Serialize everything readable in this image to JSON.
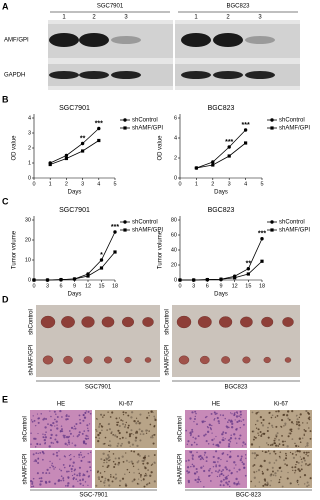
{
  "panel_labels": [
    "A",
    "B",
    "C",
    "D",
    "E"
  ],
  "blot": {
    "groups": [
      "SGC7901",
      "BGC823"
    ],
    "lanes": [
      "1",
      "2",
      "3",
      "1",
      "2",
      "3"
    ],
    "rows": [
      "AMF/GPI",
      "GAPDH"
    ]
  },
  "tumor_photos": {
    "rows": [
      "shControl",
      "shAMF/GPI"
    ],
    "groups": [
      "SGC7901",
      "BGC823"
    ]
  },
  "histology": {
    "columns": [
      "HE",
      "Ki-67",
      "HE",
      "Ki-67"
    ],
    "rows": [
      "shControl",
      "shAMF/GPI"
    ],
    "groups": [
      "SGC-7901",
      "BGC-823"
    ]
  },
  "chart_data": [
    {
      "type": "line",
      "title": "SGC7901",
      "x_label": "Days",
      "y_label": "OD value",
      "x": [
        1,
        2,
        3,
        4
      ],
      "xlim": [
        0,
        5
      ],
      "xticks": [
        0,
        1,
        2,
        3,
        4,
        5
      ],
      "ylim": [
        0,
        4
      ],
      "yticks": [
        0,
        1,
        2,
        3,
        4
      ],
      "series": [
        {
          "name": "shControl",
          "color": "#000000",
          "marker": "circle",
          "values": [
            1.0,
            1.5,
            2.3,
            3.3
          ]
        },
        {
          "name": "shAMF/GPI",
          "color": "#000000",
          "marker": "square",
          "values": [
            0.9,
            1.3,
            1.8,
            2.5
          ]
        }
      ],
      "annotations": [
        {
          "x": 3,
          "label": "**"
        },
        {
          "x": 4,
          "label": "***"
        }
      ]
    },
    {
      "type": "line",
      "title": "BGC823",
      "x_label": "Days",
      "y_label": "OD value",
      "x": [
        1,
        2,
        3,
        4
      ],
      "xlim": [
        0,
        5
      ],
      "xticks": [
        0,
        1,
        2,
        3,
        4,
        5
      ],
      "ylim": [
        0,
        6
      ],
      "yticks": [
        0,
        2,
        4,
        6
      ],
      "series": [
        {
          "name": "shControl",
          "color": "#000000",
          "marker": "circle",
          "values": [
            1.0,
            1.6,
            3.1,
            4.8
          ]
        },
        {
          "name": "shAMF/GPI",
          "color": "#000000",
          "marker": "square",
          "values": [
            1.0,
            1.3,
            2.2,
            3.5
          ]
        }
      ],
      "annotations": [
        {
          "x": 3,
          "label": "***"
        },
        {
          "x": 4,
          "label": "***"
        }
      ]
    },
    {
      "type": "line",
      "title": "SGC7901",
      "x_label": "Days",
      "y_label": "Tumor volume",
      "x": [
        0,
        3,
        6,
        9,
        12,
        15,
        18
      ],
      "xlim": [
        0,
        18
      ],
      "xticks": [
        0,
        3,
        6,
        9,
        12,
        15,
        18
      ],
      "ylim": [
        0,
        30
      ],
      "yticks": [
        0,
        10,
        20,
        30
      ],
      "series": [
        {
          "name": "shControl",
          "color": "#000000",
          "marker": "circle",
          "values": [
            0,
            0,
            0.2,
            0.5,
            3,
            10,
            24
          ]
        },
        {
          "name": "shAMF/GPI",
          "color": "#000000",
          "marker": "square",
          "values": [
            0,
            0,
            0.2,
            0.5,
            2,
            6,
            14
          ]
        }
      ],
      "annotations": [
        {
          "x": 15,
          "label": "*"
        },
        {
          "x": 18,
          "label": "***"
        }
      ]
    },
    {
      "type": "line",
      "title": "BGC823",
      "x_label": "Days",
      "y_label": "Tumor volume",
      "x": [
        0,
        3,
        6,
        9,
        12,
        15,
        18
      ],
      "xlim": [
        0,
        18
      ],
      "xticks": [
        0,
        3,
        6,
        9,
        12,
        15,
        18
      ],
      "ylim": [
        0,
        80
      ],
      "yticks": [
        0,
        20,
        40,
        60,
        80
      ],
      "series": [
        {
          "name": "shControl",
          "color": "#000000",
          "marker": "circle",
          "values": [
            0,
            0,
            0.5,
            1,
            5,
            15,
            55
          ]
        },
        {
          "name": "shAMF/GPI",
          "color": "#000000",
          "marker": "square",
          "values": [
            0,
            0,
            0.5,
            1,
            3,
            8,
            25
          ]
        }
      ],
      "annotations": [
        {
          "x": 15,
          "label": "**"
        },
        {
          "x": 18,
          "label": "***"
        }
      ]
    }
  ]
}
